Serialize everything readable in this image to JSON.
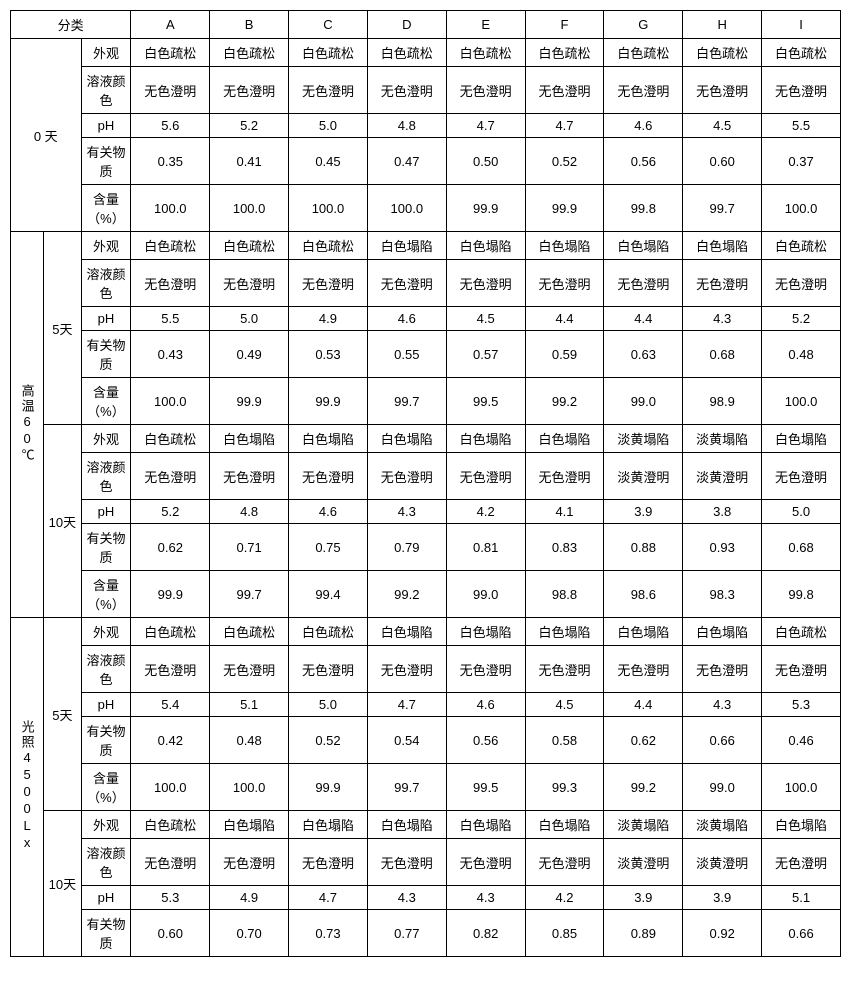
{
  "header": {
    "category": "分类",
    "cols": [
      "A",
      "B",
      "C",
      "D",
      "E",
      "F",
      "G",
      "H",
      "I"
    ]
  },
  "props": {
    "appearance": "外观",
    "color": "溶液颜色",
    "ph": "pH",
    "impurity": "有关物质",
    "content": "含量（%）"
  },
  "conditions": {
    "day0": "0 天",
    "temp60": "高温60℃",
    "light4500": "光照4500Lx",
    "d5": "5天",
    "d10": "10天"
  },
  "vals": {
    "s1": {
      "appearance": [
        "白色疏松",
        "白色疏松",
        "白色疏松",
        "白色疏松",
        "白色疏松",
        "白色疏松",
        "白色疏松",
        "白色疏松",
        "白色疏松"
      ],
      "color": [
        "无色澄明",
        "无色澄明",
        "无色澄明",
        "无色澄明",
        "无色澄明",
        "无色澄明",
        "无色澄明",
        "无色澄明",
        "无色澄明"
      ],
      "ph": [
        "5.6",
        "5.2",
        "5.0",
        "4.8",
        "4.7",
        "4.7",
        "4.6",
        "4.5",
        "5.5"
      ],
      "impurity": [
        "0.35",
        "0.41",
        "0.45",
        "0.47",
        "0.50",
        "0.52",
        "0.56",
        "0.60",
        "0.37"
      ],
      "content": [
        "100.0",
        "100.0",
        "100.0",
        "100.0",
        "99.9",
        "99.9",
        "99.8",
        "99.7",
        "100.0"
      ]
    },
    "s2": {
      "appearance": [
        "白色疏松",
        "白色疏松",
        "白色疏松",
        "白色塌陷",
        "白色塌陷",
        "白色塌陷",
        "白色塌陷",
        "白色塌陷",
        "白色疏松"
      ],
      "color": [
        "无色澄明",
        "无色澄明",
        "无色澄明",
        "无色澄明",
        "无色澄明",
        "无色澄明",
        "无色澄明",
        "无色澄明",
        "无色澄明"
      ],
      "ph": [
        "5.5",
        "5.0",
        "4.9",
        "4.6",
        "4.5",
        "4.4",
        "4.4",
        "4.3",
        "5.2"
      ],
      "impurity": [
        "0.43",
        "0.49",
        "0.53",
        "0.55",
        "0.57",
        "0.59",
        "0.63",
        "0.68",
        "0.48"
      ],
      "content": [
        "100.0",
        "99.9",
        "99.9",
        "99.7",
        "99.5",
        "99.2",
        "99.0",
        "98.9",
        "100.0"
      ]
    },
    "s3": {
      "appearance": [
        "白色疏松",
        "白色塌陷",
        "白色塌陷",
        "白色塌陷",
        "白色塌陷",
        "白色塌陷",
        "淡黄塌陷",
        "淡黄塌陷",
        "白色塌陷"
      ],
      "color": [
        "无色澄明",
        "无色澄明",
        "无色澄明",
        "无色澄明",
        "无色澄明",
        "无色澄明",
        "淡黄澄明",
        "淡黄澄明",
        "无色澄明"
      ],
      "ph": [
        "5.2",
        "4.8",
        "4.6",
        "4.3",
        "4.2",
        "4.1",
        "3.9",
        "3.8",
        "5.0"
      ],
      "impurity": [
        "0.62",
        "0.71",
        "0.75",
        "0.79",
        "0.81",
        "0.83",
        "0.88",
        "0.93",
        "0.68"
      ],
      "content": [
        "99.9",
        "99.7",
        "99.4",
        "99.2",
        "99.0",
        "98.8",
        "98.6",
        "98.3",
        "99.8"
      ]
    },
    "s4": {
      "appearance": [
        "白色疏松",
        "白色疏松",
        "白色疏松",
        "白色塌陷",
        "白色塌陷",
        "白色塌陷",
        "白色塌陷",
        "白色塌陷",
        "白色疏松"
      ],
      "color": [
        "无色澄明",
        "无色澄明",
        "无色澄明",
        "无色澄明",
        "无色澄明",
        "无色澄明",
        "无色澄明",
        "无色澄明",
        "无色澄明"
      ],
      "ph": [
        "5.4",
        "5.1",
        "5.0",
        "4.7",
        "4.6",
        "4.5",
        "4.4",
        "4.3",
        "5.3"
      ],
      "impurity": [
        "0.42",
        "0.48",
        "0.52",
        "0.54",
        "0.56",
        "0.58",
        "0.62",
        "0.66",
        "0.46"
      ],
      "content": [
        "100.0",
        "100.0",
        "99.9",
        "99.7",
        "99.5",
        "99.3",
        "99.2",
        "99.0",
        "100.0"
      ]
    },
    "s5": {
      "appearance": [
        "白色疏松",
        "白色塌陷",
        "白色塌陷",
        "白色塌陷",
        "白色塌陷",
        "白色塌陷",
        "淡黄塌陷",
        "淡黄塌陷",
        "白色塌陷"
      ],
      "color": [
        "无色澄明",
        "无色澄明",
        "无色澄明",
        "无色澄明",
        "无色澄明",
        "无色澄明",
        "淡黄澄明",
        "淡黄澄明",
        "无色澄明"
      ],
      "ph": [
        "5.3",
        "4.9",
        "4.7",
        "4.3",
        "4.3",
        "4.2",
        "3.9",
        "3.9",
        "5.1"
      ],
      "impurity": [
        "0.60",
        "0.70",
        "0.73",
        "0.77",
        "0.82",
        "0.85",
        "0.89",
        "0.92",
        "0.66"
      ]
    }
  }
}
